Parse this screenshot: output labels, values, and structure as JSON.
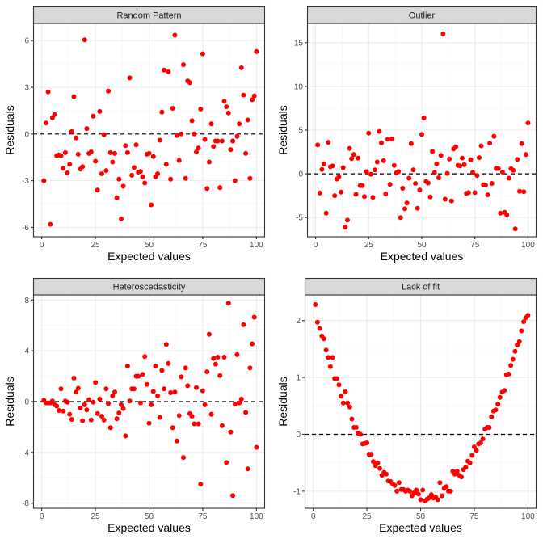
{
  "chart_data": [
    {
      "type": "scatter",
      "title": "Random Pattern",
      "xlabel": "Expected values",
      "ylabel": "Residuals",
      "xlim": [
        -4,
        104
      ],
      "ylim": [
        -6.6,
        7.1
      ],
      "xticks": [
        0,
        25,
        50,
        75,
        100
      ],
      "xtick_labels": [
        "0",
        "25",
        "50",
        "75",
        "100"
      ],
      "yticks": [
        -6,
        -3,
        0,
        3,
        6
      ],
      "ytick_labels": [
        "-6",
        "-3",
        "0",
        "3",
        "6"
      ],
      "hline": 0,
      "grid": true,
      "x": [
        1,
        2,
        3,
        4,
        5,
        6,
        7,
        8,
        9,
        10,
        11,
        12,
        13,
        14,
        15,
        16,
        17,
        18,
        19,
        20,
        21,
        22,
        23,
        24,
        25,
        26,
        27,
        28,
        29,
        30,
        31,
        32,
        33,
        34,
        35,
        36,
        37,
        38,
        39,
        40,
        41,
        42,
        43,
        44,
        45,
        46,
        47,
        48,
        49,
        50,
        51,
        52,
        53,
        54,
        55,
        56,
        57,
        58,
        59,
        60,
        61,
        62,
        63,
        64,
        65,
        66,
        67,
        68,
        69,
        70,
        71,
        72,
        73,
        74,
        75,
        76,
        77,
        78,
        79,
        80,
        81,
        82,
        83,
        84,
        85,
        86,
        87,
        88,
        89,
        90,
        91,
        92,
        93,
        94,
        95,
        96,
        97,
        98,
        99,
        100
      ],
      "y": [
        -3.0,
        0.7,
        2.7,
        -5.8,
        1.05,
        1.25,
        -1.4,
        -1.35,
        -1.4,
        -2.2,
        -1.2,
        -2.5,
        -1.95,
        0.15,
        2.4,
        -0.25,
        -1.3,
        -2.25,
        -2.1,
        6.05,
        0.35,
        -1.25,
        -1.15,
        1.15,
        -1.75,
        -3.6,
        1.45,
        -2.55,
        -0.05,
        -2.35,
        2.75,
        -1.2,
        -1.8,
        -1.25,
        -4.1,
        -2.9,
        -5.45,
        -3.35,
        -0.75,
        -1.2,
        3.6,
        -2.65,
        -2.15,
        -0.7,
        -2.45,
        -2.4,
        -2.75,
        -3.15,
        -1.3,
        -1.25,
        -4.55,
        -1.45,
        -2.75,
        -2.55,
        -0.4,
        1.4,
        4.1,
        -1.95,
        4.0,
        -2.9,
        1.65,
        6.35,
        -0.1,
        -1.7,
        0.0,
        4.45,
        -2.85,
        3.4,
        3.3,
        0.85,
        0.0,
        -1.15,
        -0.9,
        1.6,
        5.15,
        -0.35,
        -3.5,
        -1.8,
        0.65,
        -0.8,
        -0.45,
        -0.45,
        -3.45,
        -0.45,
        2.1,
        1.75,
        1.35,
        -1.0,
        -0.45,
        -3.0,
        -0.15,
        0.65,
        4.25,
        2.5,
        -1.25,
        0.9,
        -2.85,
        2.2,
        2.45,
        5.3
      ]
    },
    {
      "type": "scatter",
      "title": "Outlier",
      "xlabel": "Expected values",
      "ylabel": "Residuals",
      "xlim": [
        -4,
        104
      ],
      "ylim": [
        -7.2,
        17.2
      ],
      "xticks": [
        0,
        25,
        50,
        75,
        100
      ],
      "xtick_labels": [
        "0",
        "25",
        "50",
        "75",
        "100"
      ],
      "yticks": [
        -5,
        0,
        5,
        10,
        15
      ],
      "ytick_labels": [
        "-5",
        "0",
        "5",
        "10",
        "15"
      ],
      "hline": 0,
      "grid": true,
      "x": [
        1,
        2,
        3,
        4,
        5,
        6,
        7,
        8,
        9,
        10,
        11,
        12,
        13,
        14,
        15,
        16,
        17,
        18,
        19,
        20,
        21,
        22,
        23,
        24,
        25,
        26,
        27,
        28,
        29,
        30,
        31,
        32,
        33,
        34,
        35,
        36,
        37,
        38,
        39,
        40,
        41,
        42,
        43,
        44,
        45,
        46,
        47,
        48,
        49,
        50,
        51,
        52,
        53,
        54,
        55,
        56,
        57,
        58,
        59,
        60,
        61,
        62,
        63,
        64,
        65,
        66,
        67,
        68,
        69,
        70,
        71,
        72,
        73,
        74,
        75,
        76,
        77,
        78,
        79,
        80,
        81,
        82,
        83,
        84,
        85,
        86,
        87,
        88,
        89,
        90,
        91,
        92,
        93,
        94,
        95,
        96,
        97,
        98,
        99,
        100
      ],
      "y": [
        3.3,
        -2.2,
        0.5,
        1.15,
        -4.5,
        3.6,
        0.8,
        0.9,
        -2.5,
        -0.6,
        -0.35,
        -2.1,
        0.7,
        -6.1,
        -5.3,
        2.9,
        1.75,
        2.2,
        -2.35,
        1.8,
        -1.35,
        -1.35,
        -2.6,
        0.25,
        4.65,
        -0.05,
        -2.7,
        0.45,
        1.35,
        4.85,
        3.55,
        1.5,
        -2.3,
        3.95,
        -1.2,
        4.0,
        0.95,
        0.1,
        0.25,
        -5.0,
        -1.65,
        -4.0,
        -3.35,
        -0.5,
        3.45,
        0.45,
        -1.1,
        -3.95,
        -1.85,
        4.5,
        6.4,
        -0.9,
        -1.05,
        -2.65,
        2.55,
        0.15,
        1.15,
        -0.45,
        2.1,
        16.0,
        -2.9,
        0.05,
        1.7,
        -3.1,
        2.85,
        3.1,
        0.95,
        0.9,
        1.8,
        1.05,
        -2.25,
        -2.15,
        1.6,
        0.15,
        -2.15,
        -0.2,
        1.85,
        3.2,
        -1.25,
        -1.3,
        -2.4,
        3.5,
        -1.1,
        4.3,
        0.6,
        0.6,
        -4.5,
        0.2,
        -4.4,
        -4.7,
        -0.5,
        0.6,
        0.4,
        -6.3,
        1.65,
        -2.0,
        3.45,
        -2.05,
        2.2,
        5.8
      ]
    },
    {
      "type": "scatter",
      "title": "Heteroscedasticity",
      "xlabel": "Expected values",
      "ylabel": "Residuals",
      "xlim": [
        -4,
        104
      ],
      "ylim": [
        -8.4,
        8.4
      ],
      "xticks": [
        0,
        25,
        50,
        75,
        100
      ],
      "xtick_labels": [
        "0",
        "25",
        "50",
        "75",
        "100"
      ],
      "yticks": [
        -8,
        -4,
        0,
        4,
        8
      ],
      "ytick_labels": [
        "-8",
        "-4",
        "0",
        "4",
        "8"
      ],
      "hline": 0,
      "grid": true,
      "x": [
        1,
        2,
        3,
        4,
        5,
        6,
        7,
        8,
        9,
        10,
        11,
        12,
        13,
        14,
        15,
        16,
        17,
        18,
        19,
        20,
        21,
        22,
        23,
        24,
        25,
        26,
        27,
        28,
        29,
        30,
        31,
        32,
        33,
        34,
        35,
        36,
        37,
        38,
        39,
        40,
        41,
        42,
        43,
        44,
        45,
        46,
        47,
        48,
        49,
        50,
        51,
        52,
        53,
        54,
        55,
        56,
        57,
        58,
        59,
        60,
        61,
        62,
        63,
        64,
        65,
        66,
        67,
        68,
        69,
        70,
        71,
        72,
        73,
        74,
        75,
        76,
        77,
        78,
        79,
        80,
        81,
        82,
        83,
        84,
        85,
        86,
        87,
        88,
        89,
        90,
        91,
        92,
        93,
        94,
        95,
        96,
        97,
        98,
        99,
        100
      ],
      "y": [
        0.1,
        -0.1,
        -0.1,
        -0.1,
        0.05,
        -0.25,
        -0.35,
        -0.7,
        1.0,
        -0.75,
        0.05,
        -0.05,
        -1.0,
        -1.4,
        1.85,
        0.75,
        1.05,
        -0.5,
        -1.5,
        -0.25,
        -0.65,
        0.15,
        -1.45,
        -0.05,
        1.5,
        -0.95,
        0.2,
        -1.15,
        -1.45,
        1.0,
        -0.15,
        -2.05,
        0.45,
        0.75,
        -1.35,
        -0.9,
        -0.25,
        -0.55,
        -2.7,
        2.8,
        0.05,
        1.0,
        1.0,
        2.0,
        2.0,
        -0.1,
        2.15,
        3.55,
        1.35,
        -1.7,
        -0.25,
        0.8,
        2.8,
        0.45,
        -1.25,
        2.45,
        1.0,
        4.5,
        3.0,
        0.7,
        -2.05,
        0.75,
        -3.1,
        -1.1,
        1.95,
        -4.4,
        2.65,
        1.25,
        -0.95,
        -1.15,
        -1.75,
        1.1,
        -1.75,
        -6.5,
        0.85,
        -0.25,
        2.35,
        5.3,
        -1.0,
        3.4,
        2.95,
        3.5,
        2.05,
        -1.9,
        3.5,
        -4.8,
        7.75,
        -2.4,
        -7.4,
        -0.2,
        3.7,
        -0.1,
        0.2,
        6.05,
        -0.85,
        -5.3,
        2.65,
        4.55,
        6.65,
        -3.6
      ]
    },
    {
      "type": "scatter",
      "title": "Lack of fit",
      "xlabel": "Expected values",
      "ylabel": "Residuals",
      "xlim": [
        -4,
        104
      ],
      "ylim": [
        -1.3,
        2.45
      ],
      "xticks": [
        0,
        25,
        50,
        75,
        100
      ],
      "xtick_labels": [
        "0",
        "25",
        "50",
        "75",
        "100"
      ],
      "yticks": [
        -1,
        0,
        1,
        2
      ],
      "ytick_labels": [
        "-1",
        "0",
        "1",
        "2"
      ],
      "hline": 0,
      "grid": true,
      "x": [
        1,
        2,
        3,
        4,
        5,
        6,
        7,
        8,
        9,
        10,
        11,
        12,
        13,
        14,
        15,
        16,
        17,
        18,
        19,
        20,
        21,
        22,
        23,
        24,
        25,
        26,
        27,
        28,
        29,
        30,
        31,
        32,
        33,
        34,
        35,
        36,
        37,
        38,
        39,
        40,
        41,
        42,
        43,
        44,
        45,
        46,
        47,
        48,
        49,
        50,
        51,
        52,
        53,
        54,
        55,
        56,
        57,
        58,
        59,
        60,
        61,
        62,
        63,
        64,
        65,
        66,
        67,
        68,
        69,
        70,
        71,
        72,
        73,
        74,
        75,
        76,
        77,
        78,
        79,
        80,
        81,
        82,
        83,
        84,
        85,
        86,
        87,
        88,
        89,
        90,
        91,
        92,
        93,
        94,
        95,
        96,
        97,
        98,
        99,
        100
      ],
      "y": [
        2.28,
        1.97,
        1.86,
        1.73,
        1.68,
        1.48,
        1.35,
        1.19,
        1.35,
        0.98,
        0.98,
        0.87,
        0.67,
        0.55,
        0.75,
        0.55,
        0.48,
        0.27,
        0.12,
        0.12,
        0.02,
        0.0,
        -0.17,
        -0.16,
        -0.15,
        -0.35,
        -0.35,
        -0.48,
        -0.55,
        -0.5,
        -0.6,
        -0.72,
        -0.67,
        -0.7,
        -0.82,
        -0.83,
        -0.87,
        -0.9,
        -1.0,
        -0.85,
        -0.97,
        -0.97,
        -1.0,
        -0.98,
        -1.0,
        -1.08,
        -1.03,
        -0.98,
        -1.05,
        -1.15,
        -0.98,
        -1.17,
        -1.14,
        -1.12,
        -1.06,
        -1.12,
        -1.1,
        -1.15,
        -0.85,
        -1.08,
        -0.95,
        -0.92,
        -1.0,
        -1.0,
        -0.65,
        -0.7,
        -0.65,
        -0.72,
        -0.75,
        -0.62,
        -0.58,
        -0.47,
        -0.5,
        -0.37,
        -0.22,
        -0.28,
        -0.17,
        -0.15,
        -0.08,
        0.09,
        0.12,
        0.12,
        0.31,
        0.41,
        0.43,
        0.53,
        0.65,
        0.74,
        0.77,
        1.05,
        1.06,
        1.21,
        1.32,
        1.46,
        1.57,
        1.63,
        1.82,
        1.98,
        2.05,
        2.09
      ]
    }
  ],
  "colors": {
    "point": "#ff0000",
    "strip_fill": "#d9d9d9",
    "panel_border": "#333333",
    "grid_major": "#ebebeb",
    "grid_minor": "#f5f5f5",
    "hline": "#000000"
  }
}
